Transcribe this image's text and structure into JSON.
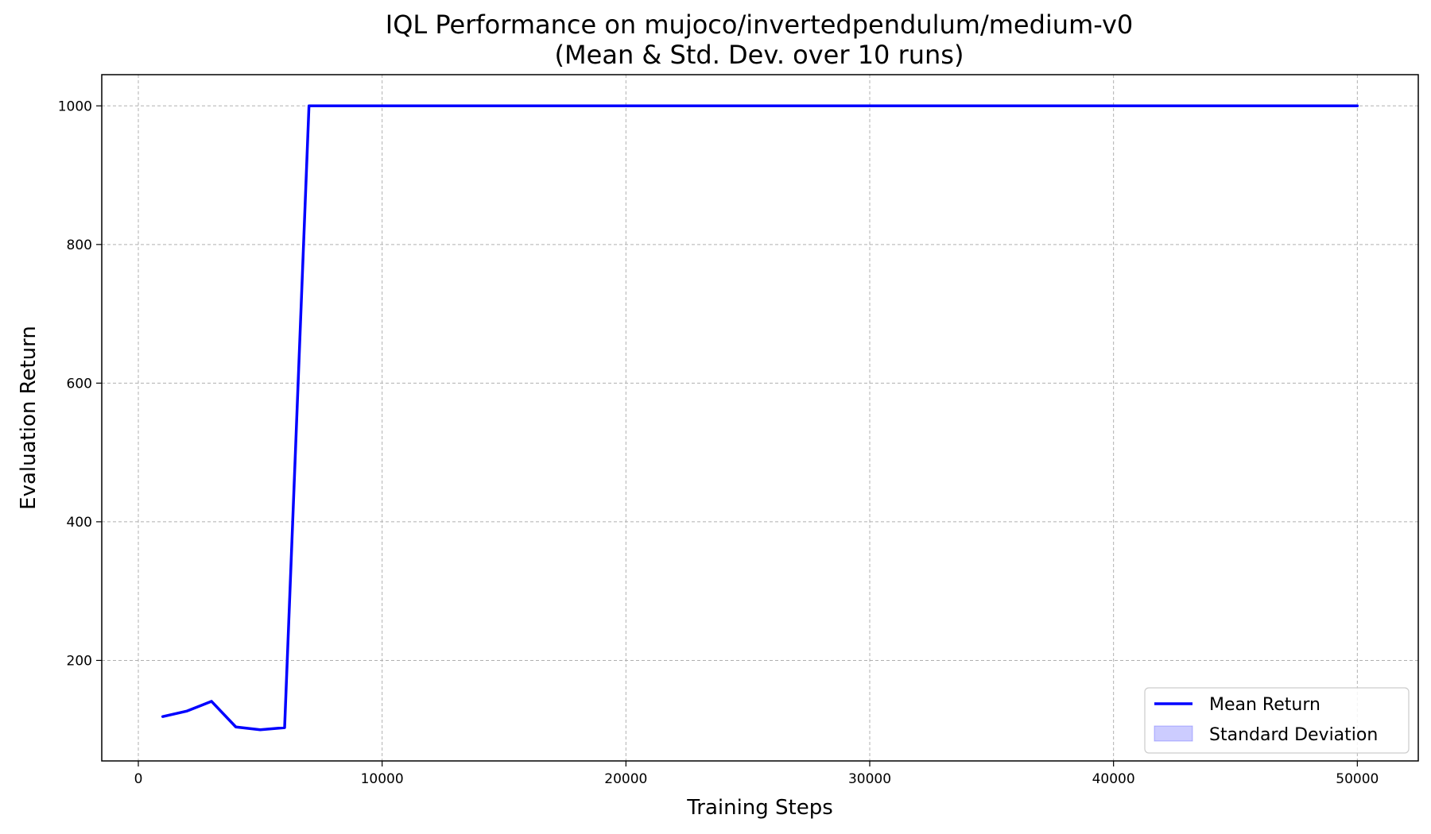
{
  "chart_data": {
    "type": "line",
    "title": "IQL Performance on mujoco/invertedpendulum/medium-v0",
    "subtitle": "(Mean & Std. Dev. over 10 runs)",
    "xlabel": "Training Steps",
    "ylabel": "Evaluation Return",
    "xlim": [
      -1500,
      52500
    ],
    "ylim": [
      55,
      1045
    ],
    "xticks": [
      0,
      10000,
      20000,
      30000,
      40000,
      50000
    ],
    "yticks": [
      200,
      400,
      600,
      800,
      1000
    ],
    "grid": true,
    "legend_position": "lower-right",
    "series": [
      {
        "name": "Mean Return",
        "color": "#0000ff",
        "x": [
          1000,
          2000,
          3000,
          4000,
          5000,
          6000,
          7000,
          8000,
          9000,
          10000,
          11000,
          12000,
          13000,
          14000,
          15000,
          16000,
          17000,
          18000,
          19000,
          20000,
          21000,
          22000,
          23000,
          24000,
          25000,
          26000,
          27000,
          28000,
          29000,
          30000,
          31000,
          32000,
          33000,
          34000,
          35000,
          36000,
          37000,
          38000,
          39000,
          40000,
          41000,
          42000,
          43000,
          44000,
          45000,
          46000,
          47000,
          48000,
          49000,
          50000
        ],
        "y": [
          119,
          127,
          141,
          104,
          100,
          103,
          1000,
          1000,
          1000,
          1000,
          1000,
          1000,
          1000,
          1000,
          1000,
          1000,
          1000,
          1000,
          1000,
          1000,
          1000,
          1000,
          1000,
          1000,
          1000,
          1000,
          1000,
          1000,
          1000,
          1000,
          1000,
          1000,
          1000,
          1000,
          1000,
          1000,
          1000,
          1000,
          1000,
          1000,
          1000,
          1000,
          1000,
          1000,
          1000,
          1000,
          1000,
          1000,
          1000,
          1000
        ]
      },
      {
        "name": "Standard Deviation",
        "type": "band",
        "color": "#0000ff",
        "opacity": 0.2
      }
    ]
  }
}
